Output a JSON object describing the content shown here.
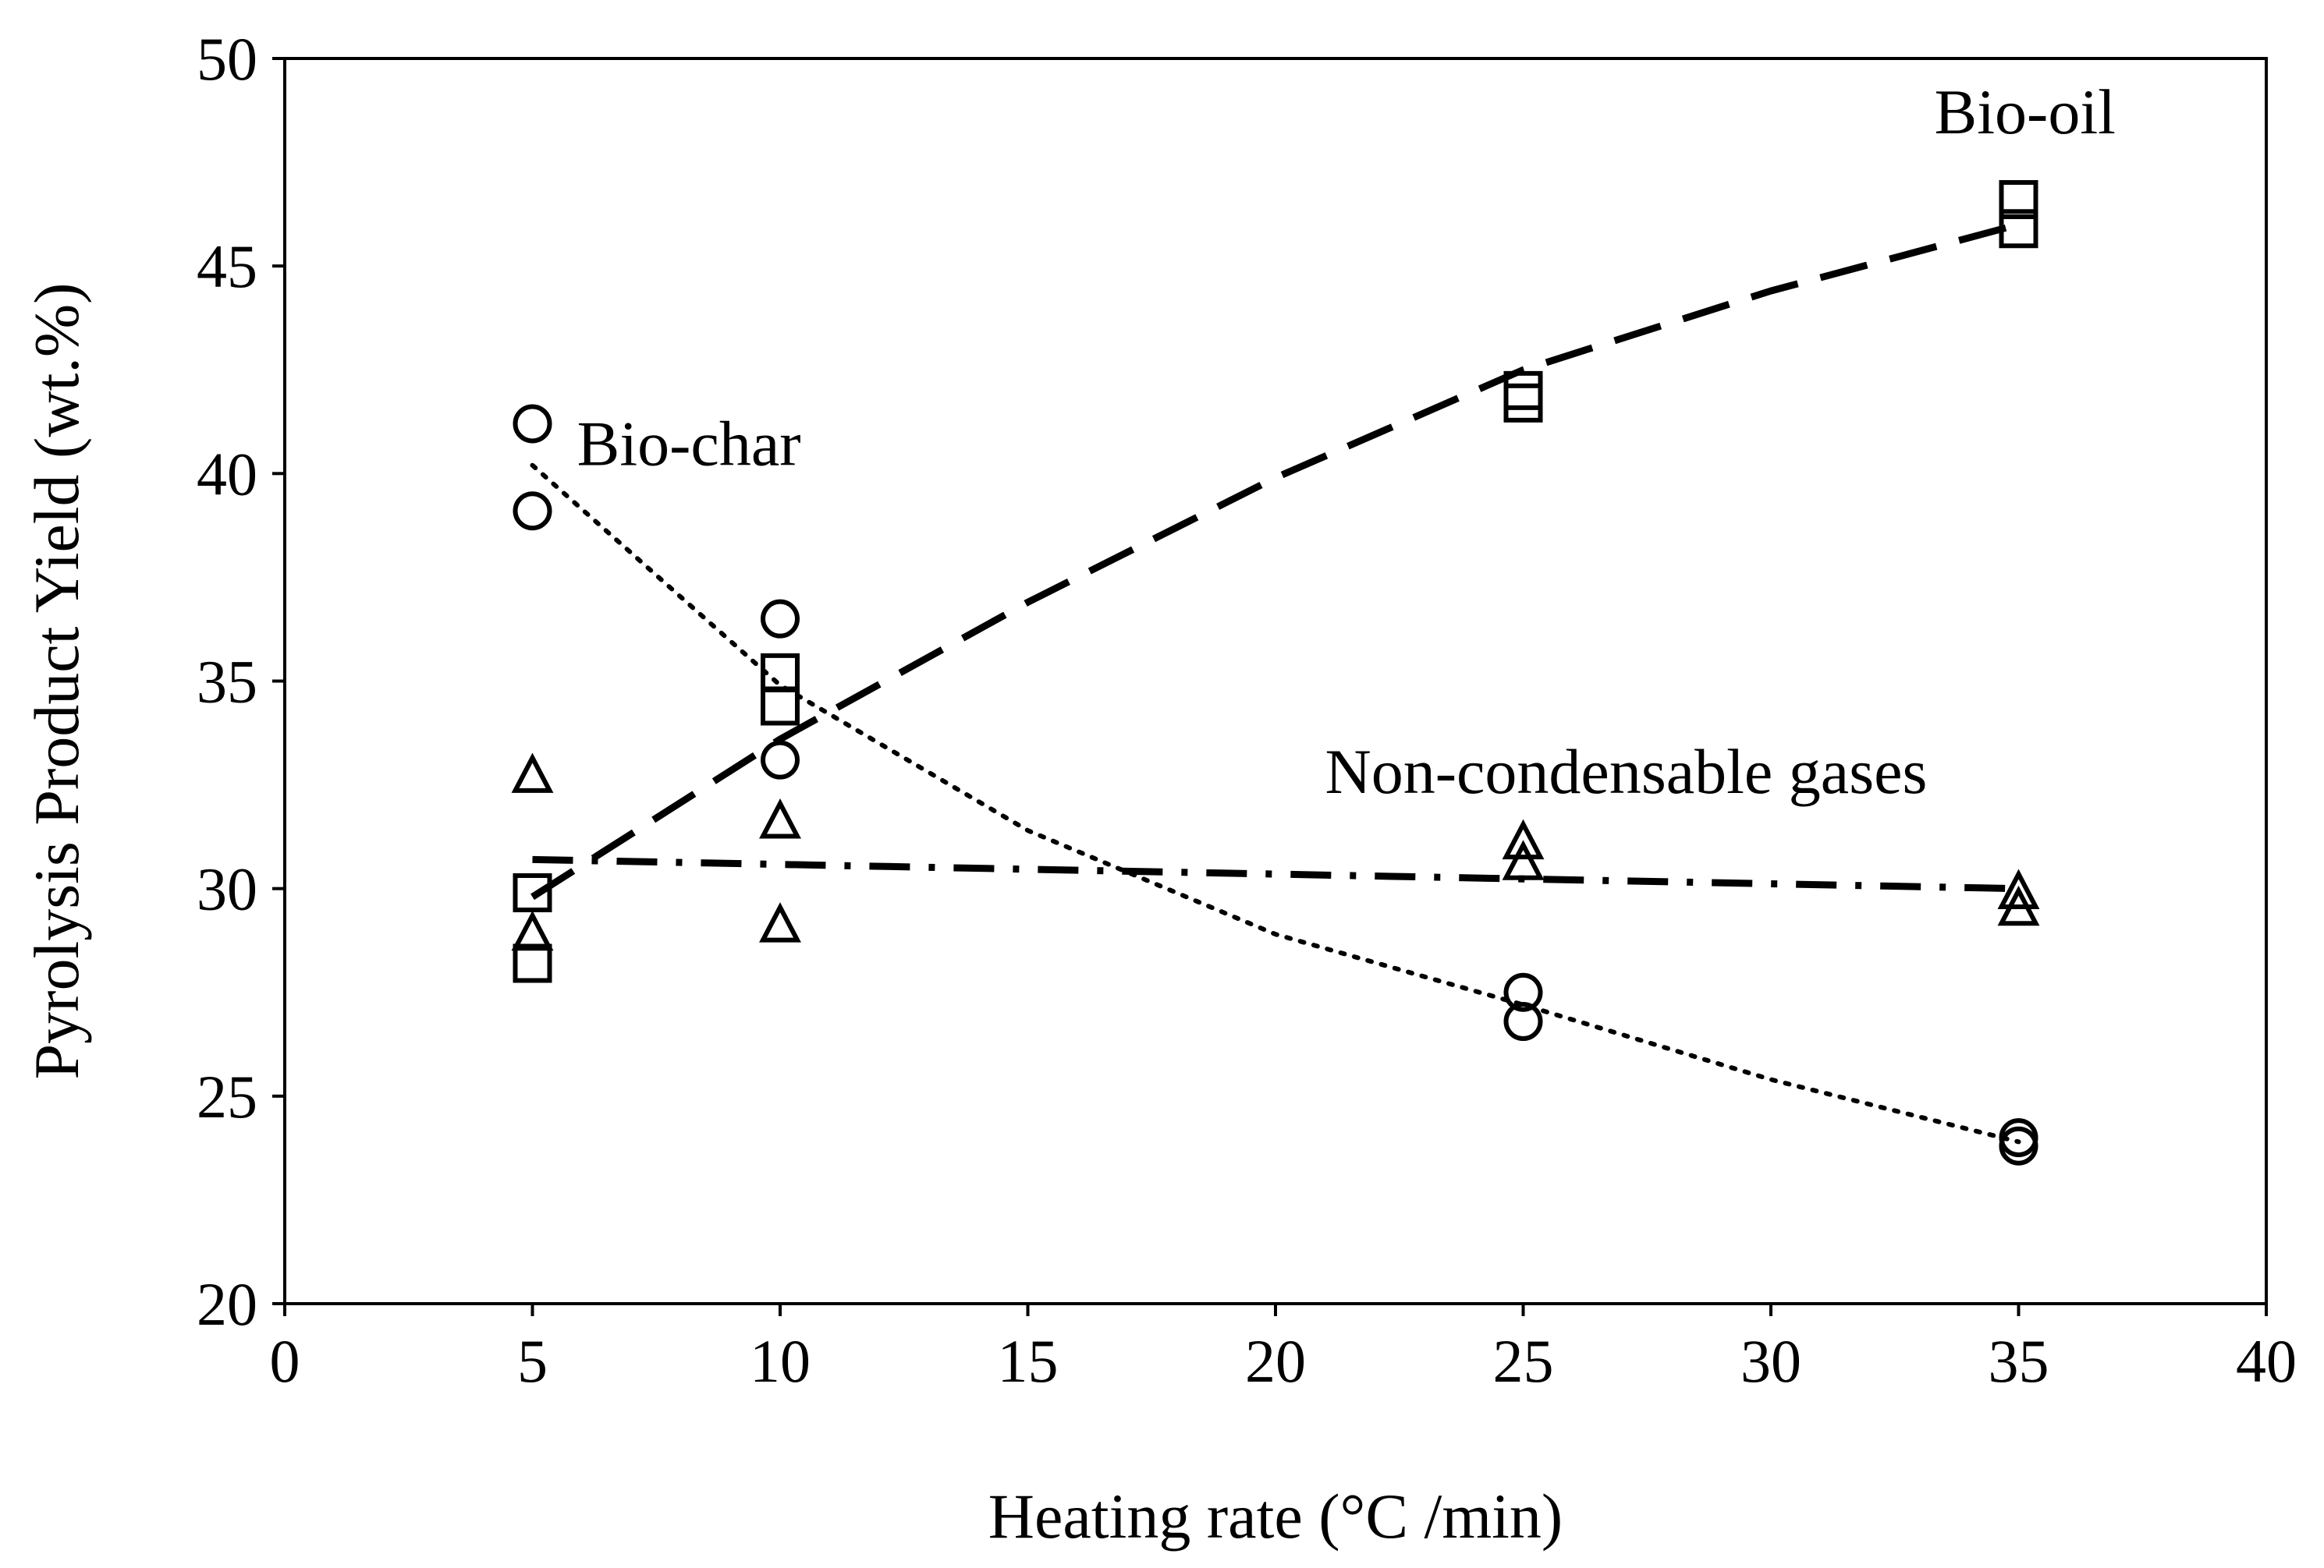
{
  "chart_data": {
    "type": "scatter",
    "title": "",
    "xlabel": "Heating rate (°C /min)",
    "ylabel": "Pyrolysis Product Yield (wt.%)",
    "xlim": [
      0,
      40
    ],
    "ylim": [
      20,
      50
    ],
    "xticks": [
      0,
      5,
      10,
      15,
      20,
      25,
      30,
      35,
      40
    ],
    "yticks": [
      20,
      25,
      30,
      35,
      40,
      45,
      50
    ],
    "xtick_labels": [
      "0",
      "5",
      "10",
      "15",
      "20",
      "25",
      "30",
      "35",
      "40"
    ],
    "ytick_labels": [
      "20",
      "25",
      "30",
      "35",
      "40",
      "45",
      "50"
    ],
    "grid": false,
    "legend": "none",
    "series": [
      {
        "name": "Bio-oil",
        "marker": "square",
        "line_style": "long-dash",
        "points": [
          [
            5,
            29.9
          ],
          [
            5,
            28.2
          ],
          [
            10,
            35.2
          ],
          [
            10,
            34.4
          ],
          [
            25,
            42.0
          ],
          [
            25,
            41.7
          ],
          [
            35,
            46.6
          ],
          [
            35,
            45.9
          ]
        ],
        "trend": [
          [
            5,
            29.8
          ],
          [
            10,
            33.6
          ],
          [
            15,
            36.9
          ],
          [
            20,
            39.9
          ],
          [
            25,
            42.5
          ],
          [
            30,
            44.4
          ],
          [
            35,
            46.0
          ]
        ]
      },
      {
        "name": "Bio-char",
        "marker": "circle",
        "line_style": "dotted",
        "points": [
          [
            5,
            41.2
          ],
          [
            5,
            39.1
          ],
          [
            10,
            36.5
          ],
          [
            10,
            33.1
          ],
          [
            25,
            27.5
          ],
          [
            25,
            26.8
          ],
          [
            35,
            24.0
          ],
          [
            35,
            23.8
          ]
        ],
        "trend": [
          [
            5,
            40.2
          ],
          [
            10,
            34.9
          ],
          [
            15,
            31.4
          ],
          [
            20,
            28.9
          ],
          [
            25,
            27.2
          ],
          [
            30,
            25.4
          ],
          [
            35,
            23.9
          ]
        ]
      },
      {
        "name": "Non-condensable gases",
        "marker": "triangle",
        "line_style": "dash-dot",
        "points": [
          [
            5,
            32.7
          ],
          [
            5,
            28.9
          ],
          [
            10,
            31.6
          ],
          [
            10,
            29.1
          ],
          [
            25,
            31.1
          ],
          [
            25,
            30.6
          ],
          [
            35,
            29.9
          ],
          [
            35,
            29.5
          ]
        ],
        "trend": [
          [
            5,
            30.7
          ],
          [
            35,
            30.0
          ]
        ]
      }
    ],
    "annotations": [
      {
        "text": "Bio-oil",
        "x": 33.3,
        "y": 48.2
      },
      {
        "text": "Bio-char",
        "x": 5.9,
        "y": 40.2
      },
      {
        "text": "Non-condensable gases",
        "x": 21.0,
        "y": 32.3
      }
    ]
  }
}
